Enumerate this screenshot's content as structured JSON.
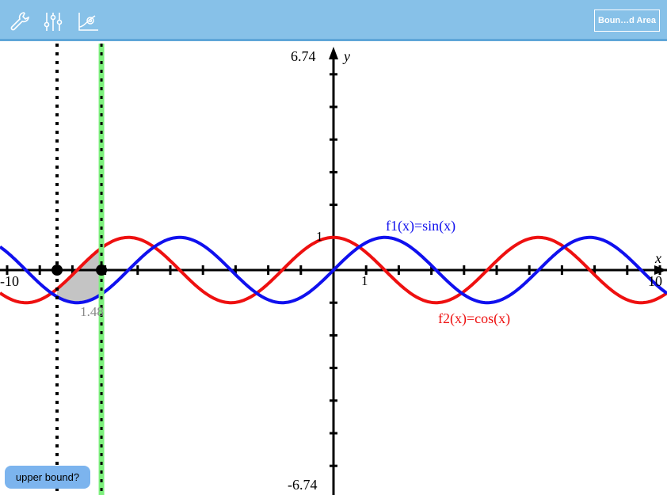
{
  "toolbar": {
    "icons": [
      "wrench-icon",
      "sliders-icon",
      "graph-settings-icon"
    ],
    "bound_area_label": "Boun…d Area"
  },
  "graph": {
    "x_range": [
      -10,
      10
    ],
    "y_range": [
      -6.74,
      6.74
    ],
    "x_min_label": "-10",
    "x_max_label": "10",
    "x_unit_label": "1",
    "y_max_label": "6.74",
    "y_min_label": "-6.74",
    "y_unit_label": "1",
    "x_axis_label": "x",
    "y_axis_label": "y",
    "functions": [
      {
        "name": "f1",
        "label": "f1(x)=sin(x)",
        "expr": "sin",
        "color": "#1010ee"
      },
      {
        "name": "f2",
        "label": "f2(x)=cos(x)",
        "expr": "cos",
        "color": "#ee1010"
      }
    ],
    "bounded_area": {
      "lower_bound": -8.47,
      "upper_bound": -7.11,
      "value_label": "1.48",
      "fill": "#c4c4c4"
    }
  },
  "status": {
    "prompt": "upper bound?"
  }
}
